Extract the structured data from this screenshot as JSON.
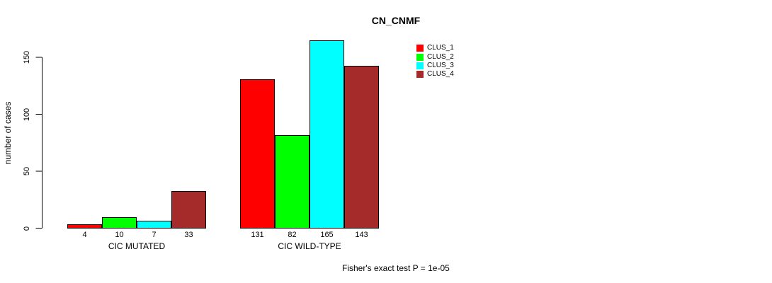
{
  "page": {
    "background": "#ffffff",
    "text_color": "#000000"
  },
  "chart_data": {
    "type": "bar",
    "title": "CN_CNMF",
    "xlabel": "",
    "ylabel": "number of cases",
    "ylim": [
      0,
      150
    ],
    "yticks": [
      0,
      50,
      100,
      150
    ],
    "grid": false,
    "legend_position": "top-right",
    "bar_border_color": "#000000",
    "categories": [
      "CIC MUTATED",
      "CIC WILD-TYPE"
    ],
    "series": [
      {
        "name": "CLUS_1",
        "color": "#FF0000",
        "values": [
          4,
          131
        ]
      },
      {
        "name": "CLUS_2",
        "color": "#00FF00",
        "values": [
          10,
          82
        ]
      },
      {
        "name": "CLUS_3",
        "color": "#00FFFF",
        "values": [
          7,
          165
        ]
      },
      {
        "name": "CLUS_4",
        "color": "#A52A2A",
        "values": [
          33,
          143
        ]
      }
    ],
    "bar_value_labels_shown": true,
    "annotation": "Fisher's exact test P = 1e-05"
  }
}
